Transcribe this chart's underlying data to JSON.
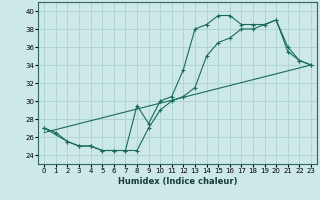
{
  "xlabel": "Humidex (Indice chaleur)",
  "background_color": "#cce8e8",
  "grid_color": "#b0d4d4",
  "line_color": "#1a6b5a",
  "xlim": [
    -0.5,
    23.5
  ],
  "ylim": [
    23,
    41
  ],
  "xticks": [
    0,
    1,
    2,
    3,
    4,
    5,
    6,
    7,
    8,
    9,
    10,
    11,
    12,
    13,
    14,
    15,
    16,
    17,
    18,
    19,
    20,
    21,
    22,
    23
  ],
  "yticks": [
    24,
    26,
    28,
    30,
    32,
    34,
    36,
    38,
    40
  ],
  "curve1_x": [
    0,
    1,
    2,
    3,
    4,
    5,
    6,
    7,
    8,
    9,
    10,
    11,
    12,
    13,
    14,
    15,
    16,
    17,
    18,
    19,
    20,
    21,
    22,
    23
  ],
  "curve1_y": [
    27,
    26.5,
    25.5,
    25,
    25,
    24.5,
    24.5,
    24.5,
    29.5,
    27.5,
    30,
    30.5,
    33.5,
    38,
    38.5,
    39.5,
    39.5,
    38.5,
    38.5,
    38.5,
    39,
    36,
    34.5,
    34
  ],
  "curve2_x": [
    0,
    2,
    3,
    4,
    5,
    6,
    7,
    8,
    9,
    10,
    11,
    12,
    13,
    14,
    15,
    16,
    17,
    18,
    19,
    20,
    21,
    22,
    23
  ],
  "curve2_y": [
    27,
    25.5,
    25,
    25,
    24.5,
    24.5,
    24.5,
    24.5,
    27,
    29,
    30,
    30.5,
    31.5,
    35,
    36.5,
    37,
    38,
    38,
    38.5,
    39,
    35.5,
    34.5,
    34
  ],
  "trend_x": [
    0,
    23
  ],
  "trend_y": [
    26.5,
    34.0
  ]
}
